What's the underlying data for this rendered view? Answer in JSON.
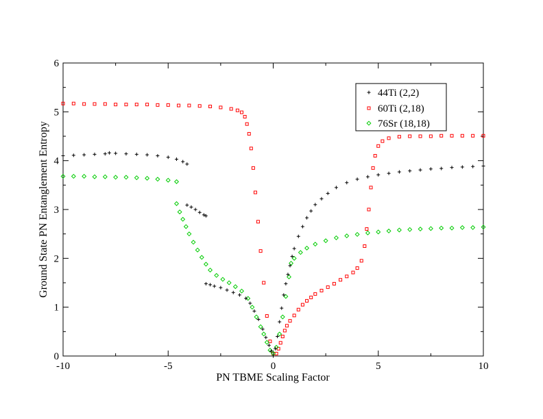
{
  "chart_data": {
    "type": "scatter",
    "title": "",
    "xlabel": "PN TBME Scaling Factor",
    "ylabel": "Ground State PN Entanglement Entropy",
    "xlim": [
      -10,
      10
    ],
    "ylim": [
      0,
      6
    ],
    "xticks": [
      -10,
      -5,
      0,
      5,
      10
    ],
    "yticks": [
      0,
      1,
      2,
      3,
      4,
      5,
      6
    ],
    "x_tick_labels": [
      "-10",
      "-5",
      "0",
      "5",
      "10"
    ],
    "y_tick_labels": [
      "0",
      "1",
      "2",
      "3",
      "4",
      "5",
      "6"
    ],
    "grid": false,
    "legend_position": "top-right",
    "series": [
      {
        "name": "44Ti (2,2)",
        "color": "#000000",
        "marker": "plus",
        "points": [
          [
            -10.0,
            4.1
          ],
          [
            -9.5,
            4.11
          ],
          [
            -9.0,
            4.12
          ],
          [
            -8.5,
            4.13
          ],
          [
            -8.0,
            4.14
          ],
          [
            -7.8,
            4.16
          ],
          [
            -7.5,
            4.15
          ],
          [
            -7.0,
            4.14
          ],
          [
            -6.5,
            4.13
          ],
          [
            -6.0,
            4.12
          ],
          [
            -5.5,
            4.1
          ],
          [
            -5.0,
            4.07
          ],
          [
            -4.6,
            4.03
          ],
          [
            -4.3,
            3.98
          ],
          [
            -4.1,
            3.93
          ],
          [
            -4.1,
            3.09
          ],
          [
            -3.9,
            3.05
          ],
          [
            -3.7,
            3.0
          ],
          [
            -3.5,
            2.94
          ],
          [
            -3.3,
            2.89
          ],
          [
            -3.2,
            2.87
          ],
          [
            -3.2,
            1.48
          ],
          [
            -3.0,
            1.46
          ],
          [
            -2.8,
            1.43
          ],
          [
            -2.5,
            1.4
          ],
          [
            -2.2,
            1.35
          ],
          [
            -1.9,
            1.3
          ],
          [
            -1.6,
            1.25
          ],
          [
            -1.3,
            1.18
          ],
          [
            -1.1,
            1.08
          ],
          [
            -0.9,
            0.92
          ],
          [
            -0.7,
            0.75
          ],
          [
            -0.5,
            0.55
          ],
          [
            -0.35,
            0.38
          ],
          [
            -0.2,
            0.22
          ],
          [
            -0.1,
            0.1
          ],
          [
            0.0,
            0.0
          ],
          [
            0.1,
            0.15
          ],
          [
            0.2,
            0.4
          ],
          [
            0.3,
            0.7
          ],
          [
            0.4,
            0.98
          ],
          [
            0.5,
            1.25
          ],
          [
            0.6,
            1.48
          ],
          [
            0.7,
            1.67
          ],
          [
            0.8,
            1.85
          ],
          [
            0.9,
            2.04
          ],
          [
            1.0,
            2.2
          ],
          [
            1.2,
            2.45
          ],
          [
            1.4,
            2.65
          ],
          [
            1.6,
            2.83
          ],
          [
            1.8,
            2.97
          ],
          [
            2.0,
            3.1
          ],
          [
            2.3,
            3.22
          ],
          [
            2.6,
            3.33
          ],
          [
            3.0,
            3.45
          ],
          [
            3.5,
            3.55
          ],
          [
            4.0,
            3.62
          ],
          [
            4.5,
            3.67
          ],
          [
            5.0,
            3.71
          ],
          [
            5.5,
            3.74
          ],
          [
            6.0,
            3.77
          ],
          [
            6.5,
            3.79
          ],
          [
            7.0,
            3.81
          ],
          [
            7.5,
            3.83
          ],
          [
            8.0,
            3.84
          ],
          [
            8.5,
            3.86
          ],
          [
            9.0,
            3.87
          ],
          [
            9.5,
            3.88
          ],
          [
            10.0,
            3.89
          ]
        ]
      },
      {
        "name": "60Ti (2,18)",
        "color": "#ff0000",
        "marker": "square",
        "points": [
          [
            -10.0,
            5.17
          ],
          [
            -9.5,
            5.17
          ],
          [
            -9.0,
            5.16
          ],
          [
            -8.5,
            5.16
          ],
          [
            -8.0,
            5.16
          ],
          [
            -7.5,
            5.15
          ],
          [
            -7.0,
            5.15
          ],
          [
            -6.5,
            5.15
          ],
          [
            -6.0,
            5.15
          ],
          [
            -5.5,
            5.14
          ],
          [
            -5.0,
            5.14
          ],
          [
            -4.5,
            5.13
          ],
          [
            -4.0,
            5.13
          ],
          [
            -3.5,
            5.12
          ],
          [
            -3.0,
            5.11
          ],
          [
            -2.5,
            5.09
          ],
          [
            -2.0,
            5.06
          ],
          [
            -1.7,
            5.03
          ],
          [
            -1.5,
            4.99
          ],
          [
            -1.35,
            4.9
          ],
          [
            -1.25,
            4.75
          ],
          [
            -1.15,
            4.55
          ],
          [
            -1.05,
            4.25
          ],
          [
            -0.95,
            3.85
          ],
          [
            -0.85,
            3.35
          ],
          [
            -0.72,
            2.75
          ],
          [
            -0.6,
            2.15
          ],
          [
            -0.45,
            1.5
          ],
          [
            -0.3,
            0.82
          ],
          [
            -0.15,
            0.3
          ],
          [
            0.0,
            0.05
          ],
          [
            0.15,
            0.05
          ],
          [
            0.25,
            0.15
          ],
          [
            0.35,
            0.27
          ],
          [
            0.45,
            0.4
          ],
          [
            0.55,
            0.52
          ],
          [
            0.65,
            0.62
          ],
          [
            0.8,
            0.72
          ],
          [
            1.0,
            0.83
          ],
          [
            1.2,
            0.95
          ],
          [
            1.4,
            1.05
          ],
          [
            1.6,
            1.13
          ],
          [
            1.8,
            1.2
          ],
          [
            2.0,
            1.27
          ],
          [
            2.3,
            1.34
          ],
          [
            2.6,
            1.41
          ],
          [
            2.9,
            1.48
          ],
          [
            3.2,
            1.56
          ],
          [
            3.5,
            1.63
          ],
          [
            3.8,
            1.71
          ],
          [
            4.0,
            1.8
          ],
          [
            4.2,
            1.95
          ],
          [
            4.35,
            2.25
          ],
          [
            4.45,
            2.6
          ],
          [
            4.55,
            3.0
          ],
          [
            4.65,
            3.45
          ],
          [
            4.75,
            3.85
          ],
          [
            4.85,
            4.1
          ],
          [
            5.0,
            4.3
          ],
          [
            5.2,
            4.4
          ],
          [
            5.5,
            4.46
          ],
          [
            6.0,
            4.49
          ],
          [
            6.5,
            4.5
          ],
          [
            7.0,
            4.5
          ],
          [
            7.5,
            4.5
          ],
          [
            8.0,
            4.51
          ],
          [
            8.5,
            4.51
          ],
          [
            9.0,
            4.51
          ],
          [
            9.5,
            4.51
          ],
          [
            10.0,
            4.51
          ]
        ]
      },
      {
        "name": "76Sr (18,18)",
        "color": "#00cc00",
        "marker": "diamond",
        "points": [
          [
            -10.0,
            3.68
          ],
          [
            -9.5,
            3.68
          ],
          [
            -9.0,
            3.68
          ],
          [
            -8.5,
            3.67
          ],
          [
            -8.0,
            3.67
          ],
          [
            -7.5,
            3.66
          ],
          [
            -7.0,
            3.66
          ],
          [
            -6.5,
            3.65
          ],
          [
            -6.0,
            3.64
          ],
          [
            -5.5,
            3.62
          ],
          [
            -5.0,
            3.6
          ],
          [
            -4.6,
            3.57
          ],
          [
            -4.6,
            3.12
          ],
          [
            -4.45,
            2.95
          ],
          [
            -4.3,
            2.8
          ],
          [
            -4.15,
            2.65
          ],
          [
            -4.0,
            2.5
          ],
          [
            -3.8,
            2.33
          ],
          [
            -3.6,
            2.17
          ],
          [
            -3.4,
            2.02
          ],
          [
            -3.2,
            1.88
          ],
          [
            -3.0,
            1.76
          ],
          [
            -2.7,
            1.65
          ],
          [
            -2.4,
            1.57
          ],
          [
            -2.1,
            1.5
          ],
          [
            -1.8,
            1.42
          ],
          [
            -1.5,
            1.33
          ],
          [
            -1.2,
            1.18
          ],
          [
            -1.0,
            1.0
          ],
          [
            -0.8,
            0.8
          ],
          [
            -0.6,
            0.6
          ],
          [
            -0.45,
            0.45
          ],
          [
            -0.3,
            0.28
          ],
          [
            -0.15,
            0.12
          ],
          [
            0.0,
            0.05
          ],
          [
            0.15,
            0.18
          ],
          [
            0.3,
            0.45
          ],
          [
            0.45,
            0.8
          ],
          [
            0.6,
            1.22
          ],
          [
            0.75,
            1.62
          ],
          [
            0.85,
            1.9
          ],
          [
            1.0,
            2.0
          ],
          [
            1.3,
            2.12
          ],
          [
            1.6,
            2.21
          ],
          [
            2.0,
            2.29
          ],
          [
            2.5,
            2.36
          ],
          [
            3.0,
            2.42
          ],
          [
            3.5,
            2.46
          ],
          [
            4.0,
            2.49
          ],
          [
            4.5,
            2.52
          ],
          [
            5.0,
            2.54
          ],
          [
            5.5,
            2.56
          ],
          [
            6.0,
            2.58
          ],
          [
            6.5,
            2.59
          ],
          [
            7.0,
            2.6
          ],
          [
            7.5,
            2.61
          ],
          [
            8.0,
            2.62
          ],
          [
            8.5,
            2.62
          ],
          [
            9.0,
            2.63
          ],
          [
            9.5,
            2.63
          ],
          [
            10.0,
            2.64
          ]
        ]
      }
    ]
  }
}
